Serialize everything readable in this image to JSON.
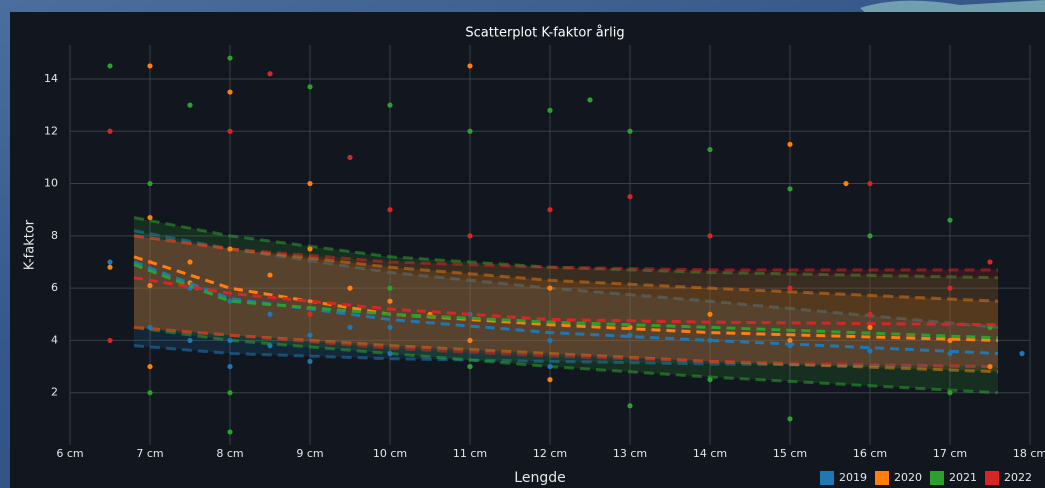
{
  "chart_data": {
    "type": "scatter",
    "title": "Scatterplot K-faktor årlig",
    "x_label": "Lengde",
    "y_label": "K-faktor",
    "xlim": [
      6,
      18
    ],
    "ylim": [
      0,
      15.3
    ],
    "grid": true,
    "legend": "bottom-right",
    "xticks": [
      {
        "value": 6,
        "label": "6 cm"
      },
      {
        "value": 7,
        "label": "7 cm"
      },
      {
        "value": 8,
        "label": "8 cm"
      },
      {
        "value": 9,
        "label": "9 cm"
      },
      {
        "value": 10,
        "label": "10 cm"
      },
      {
        "value": 11,
        "label": "11 cm"
      },
      {
        "value": 12,
        "label": "12 cm"
      },
      {
        "value": 13,
        "label": "13 cm"
      },
      {
        "value": 14,
        "label": "14 cm"
      },
      {
        "value": 15,
        "label": "15 cm"
      },
      {
        "value": 16,
        "label": "16 cm"
      },
      {
        "value": 17,
        "label": "17 cm"
      },
      {
        "value": 18,
        "label": "18 cm"
      }
    ],
    "yticks": [
      2,
      4,
      6,
      8,
      10,
      12,
      14
    ],
    "series": [
      {
        "name": "2019",
        "color": "#1f77b4",
        "x": [
          6.5,
          7,
          7,
          7.5,
          7.5,
          8,
          8,
          8,
          8,
          8.5,
          8.5,
          9,
          9,
          9,
          9.5,
          10,
          10,
          10,
          11,
          11,
          11,
          12,
          12,
          13,
          14,
          15,
          16,
          17,
          17.9
        ],
        "values": [
          7,
          6.1,
          4.5,
          6,
          4,
          5.5,
          4,
          7.5,
          3,
          5,
          3.8,
          4.2,
          3.2,
          5.5,
          4.5,
          4.5,
          3.5,
          5.5,
          4,
          5,
          3,
          4,
          3,
          4.2,
          4,
          3.8,
          3.6,
          3.5,
          3.5
        ],
        "trend_x": [
          6.8,
          8,
          10,
          12,
          14,
          17.6
        ],
        "trend": [
          7,
          5.6,
          4.8,
          4.3,
          4,
          3.5
        ],
        "band_upper": [
          8.2,
          7.5,
          6.6,
          6,
          5.5,
          4.5
        ],
        "band_lower": [
          3.8,
          3.5,
          3.3,
          3.2,
          3.1,
          3
        ]
      },
      {
        "name": "2020",
        "color": "#ff7f0e",
        "x": [
          6.5,
          7,
          7,
          7,
          7,
          7.5,
          7.5,
          8,
          8,
          8.5,
          9,
          9,
          9.5,
          10,
          10.5,
          11,
          11,
          12,
          12,
          13,
          14,
          15,
          15,
          15.7,
          16,
          17,
          17.5
        ],
        "values": [
          6.8,
          8.7,
          6.1,
          14.5,
          3,
          7,
          6.2,
          7.5,
          13.5,
          6.5,
          7.5,
          10,
          6,
          5.5,
          5,
          14.5,
          4,
          6,
          2.5,
          4.5,
          5,
          11.5,
          4,
          10,
          4.5,
          4,
          3
        ],
        "trend_x": [
          6.8,
          8,
          10,
          12,
          14,
          17.6
        ],
        "trend": [
          7.2,
          6,
          5,
          4.6,
          4.3,
          4
        ],
        "band_upper": [
          8,
          7.5,
          6.8,
          6.3,
          6,
          5.5
        ],
        "band_lower": [
          4.5,
          4.2,
          3.8,
          3.5,
          3.2,
          2.8
        ]
      },
      {
        "name": "2021",
        "color": "#2ca02c",
        "x": [
          6.5,
          7,
          7,
          7.5,
          8,
          8,
          8,
          9,
          9,
          10,
          10,
          11,
          11,
          12,
          12.5,
          13,
          13,
          14,
          14,
          15,
          15,
          16,
          17,
          17,
          17.5
        ],
        "values": [
          14.5,
          10,
          2,
          13,
          14.8,
          2,
          0.5,
          13.7,
          5,
          13,
          6,
          12,
          3,
          12.8,
          13.2,
          12,
          1.5,
          11.3,
          2.5,
          9.8,
          1,
          8,
          8.6,
          2,
          4.5
        ],
        "trend_x": [
          6.8,
          8,
          10,
          12,
          14,
          17.6
        ],
        "trend": [
          6.9,
          5.5,
          5,
          4.7,
          4.5,
          4.1
        ],
        "band_upper": [
          8.7,
          8,
          7.2,
          6.8,
          6.6,
          6.4
        ],
        "band_lower": [
          4.5,
          4,
          3.5,
          3,
          2.6,
          2
        ]
      },
      {
        "name": "2022",
        "color": "#d62728",
        "x": [
          6.5,
          6.5,
          7,
          8,
          8.5,
          9,
          9.5,
          10,
          11,
          12,
          13,
          14,
          15,
          16,
          16,
          17,
          17.5
        ],
        "values": [
          12,
          4,
          7,
          12,
          14.2,
          5,
          11,
          9,
          8,
          9,
          9.5,
          8,
          6,
          10,
          5,
          6,
          7
        ],
        "trend_x": [
          6.8,
          8,
          10,
          12,
          14,
          17.6
        ],
        "trend": [
          6.4,
          5.8,
          5.2,
          4.8,
          4.7,
          4.6
        ],
        "band_upper": [
          8,
          7.5,
          7,
          6.8,
          6.7,
          6.7
        ],
        "band_lower": [
          4.5,
          4.2,
          3.7,
          3.4,
          3.2,
          3
        ]
      }
    ]
  }
}
